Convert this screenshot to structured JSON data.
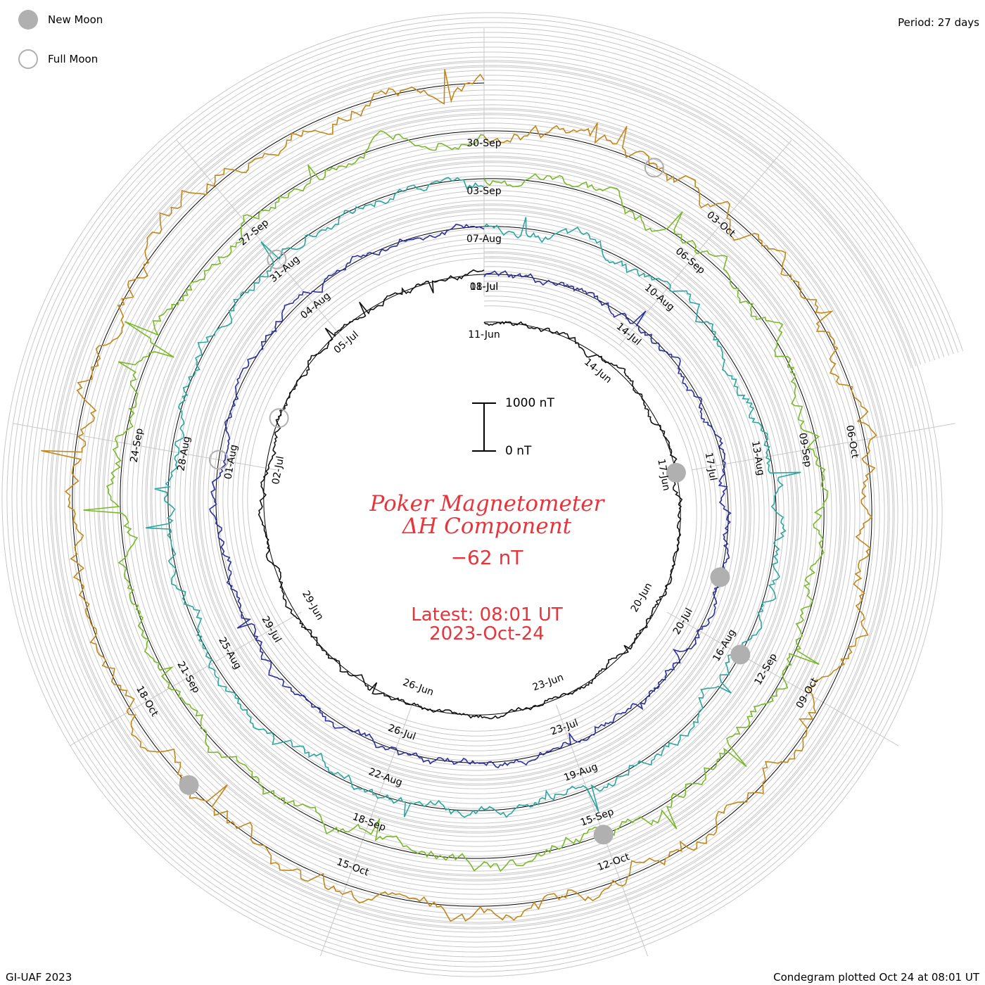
{
  "header": {
    "period": "Period: 27 days"
  },
  "legend": {
    "new_moon": "New Moon",
    "full_moon": "Full Moon",
    "new_moon_color": "#b0b0b0",
    "full_moon_color": "#b0b0b0"
  },
  "center": {
    "title_line1": "Poker Magnetometer",
    "title_line2": "ΔH Component",
    "current_value": "−62 nT",
    "latest_time": "Latest: 08:01 UT",
    "latest_date": "2023-Oct-24",
    "color": "#e8343b"
  },
  "scale_bar": {
    "top_label": "1000 nT",
    "bottom_label": "0 nT"
  },
  "footer": {
    "left": "GI-UAF 2023",
    "right": "Condegram plotted Oct 24 at 08:01 UT"
  },
  "chart_data": {
    "type": "line",
    "title": "Poker Magnetometer ΔH Component",
    "period_days": 27,
    "units": "nT",
    "latest_value": -62,
    "rotations": [
      {
        "name": "",
        "color": "#111111",
        "date_labels": [
          "11-Jun",
          "14-Jun",
          "17-Jun",
          "20-Jun",
          "23-Jun",
          "26-Jun",
          "29-Jun",
          "02-Jul",
          "05-Jul",
          "08-Jul"
        ]
      },
      {
        "name": "",
        "color": "#2a2f9c",
        "date_labels": [
          "11-Jul",
          "14-Jul",
          "17-Jul",
          "20-Jul",
          "23-Jul",
          "26-Jul",
          "29-Jul",
          "01-Aug",
          "04-Aug"
        ]
      },
      {
        "name": "",
        "color": "#2aa6a0",
        "date_labels": [
          "07-Aug",
          "10-Aug",
          "13-Aug",
          "16-Aug",
          "19-Aug",
          "22-Aug",
          "25-Aug",
          "28-Aug",
          "31-Aug"
        ]
      },
      {
        "name": "",
        "color": "#7ab82a",
        "date_labels": [
          "03-Sep",
          "06-Sep",
          "09-Sep",
          "12-Sep",
          "15-Sep",
          "18-Sep",
          "21-Sep",
          "24-Sep",
          "27-Sep"
        ]
      },
      {
        "name": "",
        "color": "#c2871a",
        "date_labels": [
          "30-Sep",
          "03-Oct",
          "06-Oct",
          "09-Oct",
          "12-Oct",
          "15-Oct",
          "18-Oct"
        ]
      }
    ],
    "new_moon_dates": [
      "17-Jun",
      "16-Jul",
      "16-Aug",
      "15-Sep",
      "14-Oct"
    ],
    "full_moon_dates": [
      "03-Jul",
      "01-Aug",
      "31-Aug",
      "29-Sep"
    ],
    "scale_nT": [
      0,
      1000
    ],
    "grid": true
  }
}
